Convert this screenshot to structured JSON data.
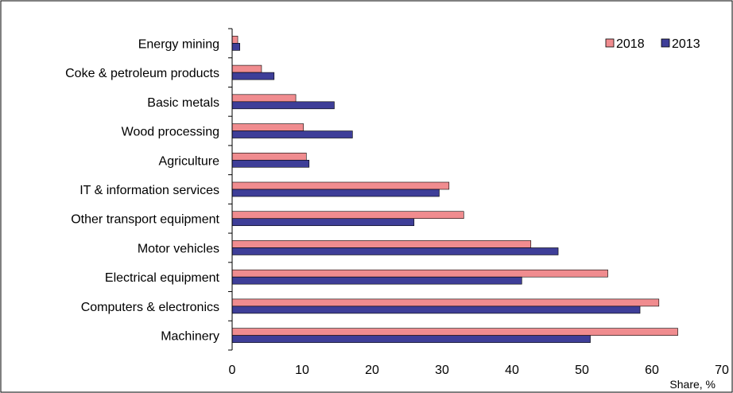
{
  "chart_data": {
    "type": "bar",
    "orientation": "horizontal",
    "categories": [
      "Energy mining",
      "Coke & petroleum products",
      "Basic metals",
      "Wood processing",
      "Agriculture",
      "IT & information services",
      "Other transport equipment",
      "Motor vehicles",
      "Electrical equipment",
      "Computers & electronics",
      "Machinery"
    ],
    "series": [
      {
        "name": "2018",
        "color": "#f08c8f",
        "values": [
          0.8,
          4.2,
          9.1,
          10.2,
          10.6,
          31.0,
          33.1,
          42.7,
          53.7,
          61.0,
          63.7
        ]
      },
      {
        "name": "2013",
        "color": "#3e3e98",
        "values": [
          1.1,
          6.0,
          14.6,
          17.2,
          11.0,
          29.6,
          26.0,
          46.6,
          41.4,
          58.3,
          51.2
        ]
      }
    ],
    "xlabel": "Share, %",
    "ylabel": "",
    "title": "",
    "xlim": [
      0,
      70
    ],
    "xticks": [
      "0",
      "10",
      "20",
      "30",
      "40",
      "50",
      "60",
      "70"
    ],
    "grid": false,
    "legend_position": "top-right"
  }
}
